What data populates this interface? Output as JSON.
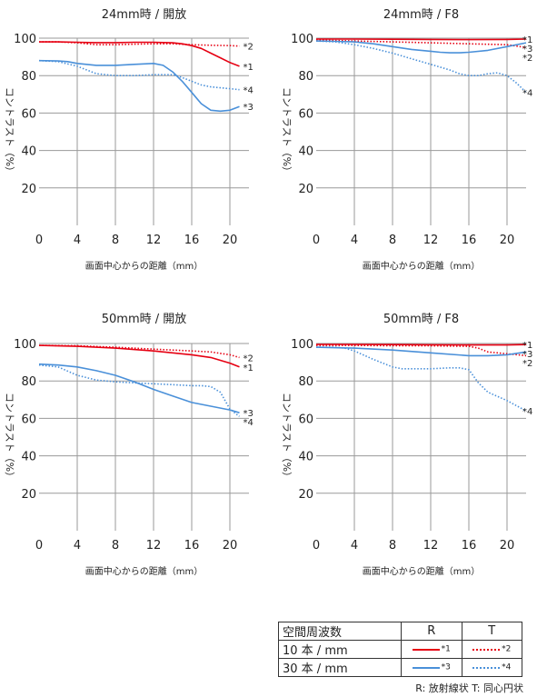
{
  "chart_data": [
    {
      "type": "line",
      "title": "24mm時 / 開放",
      "xlabel": "画面中心からの距離（mm）",
      "ylabel": "コントラスト（%）",
      "xlim": [
        0,
        22
      ],
      "ylim": [
        0,
        100
      ],
      "xticks": [
        "0",
        "4",
        "8",
        "12",
        "16",
        "20"
      ],
      "yticks": [
        "20",
        "40",
        "60",
        "80",
        "100"
      ],
      "series": [
        {
          "name": "*1",
          "style": "solid",
          "color": "#e60012",
          "x": [
            0,
            2,
            4,
            6,
            8,
            10,
            12,
            14,
            15,
            16,
            17,
            18,
            19,
            20,
            21
          ],
          "y": [
            98,
            98,
            97.8,
            97.6,
            97.6,
            97.8,
            97.8,
            97.5,
            97,
            96,
            94.5,
            92,
            89.5,
            87,
            85
          ]
        },
        {
          "name": "*2",
          "style": "dotted",
          "color": "#e60012",
          "x": [
            0,
            2,
            4,
            6,
            8,
            10,
            12,
            14,
            16,
            18,
            20,
            21
          ],
          "y": [
            98,
            98,
            97.5,
            96.5,
            96.5,
            96.8,
            97,
            97,
            96.5,
            96.2,
            96,
            95.8
          ]
        },
        {
          "name": "*3",
          "style": "solid",
          "color": "#4a90d9",
          "x": [
            0,
            2,
            3,
            4,
            6,
            8,
            10,
            12,
            13,
            14,
            15,
            16,
            17,
            18,
            19,
            20,
            21
          ],
          "y": [
            88,
            87.8,
            87.5,
            86.5,
            85.5,
            85.5,
            86,
            86.5,
            85.5,
            82,
            77,
            71,
            65,
            61.5,
            61,
            61.5,
            63.5
          ]
        },
        {
          "name": "*4",
          "style": "dotted",
          "color": "#4a90d9",
          "x": [
            0,
            2,
            4,
            6,
            8,
            10,
            12,
            14,
            15,
            16,
            17,
            18,
            19,
            20,
            21
          ],
          "y": [
            88,
            87.5,
            85,
            81,
            80,
            80,
            80.5,
            80.5,
            79,
            77,
            75,
            74,
            73.5,
            73,
            72.5
          ]
        }
      ]
    },
    {
      "type": "line",
      "title": "24mm時 / F8",
      "xlabel": "画面中心からの距離（mm）",
      "ylabel": "コントラスト（%）",
      "xlim": [
        0,
        22
      ],
      "ylim": [
        0,
        100
      ],
      "xticks": [
        "0",
        "4",
        "8",
        "12",
        "16",
        "20"
      ],
      "yticks": [
        "20",
        "40",
        "60",
        "80",
        "100"
      ],
      "series": [
        {
          "name": "*1",
          "style": "solid",
          "color": "#e60012",
          "x": [
            0,
            4,
            8,
            12,
            16,
            20,
            22
          ],
          "y": [
            99.5,
            99.5,
            99.4,
            99.3,
            99.2,
            99.3,
            99.5
          ]
        },
        {
          "name": "*2",
          "style": "dotted",
          "color": "#e60012",
          "x": [
            0,
            4,
            8,
            12,
            16,
            20,
            22
          ],
          "y": [
            99,
            98.5,
            98,
            97.5,
            97,
            96.5,
            95
          ]
        },
        {
          "name": "*3",
          "style": "solid",
          "color": "#4a90d9",
          "x": [
            0,
            2,
            4,
            6,
            8,
            10,
            12,
            13,
            14,
            15,
            16,
            18,
            20,
            22
          ],
          "y": [
            98.5,
            98.3,
            98,
            97,
            95.5,
            94,
            93,
            92.5,
            92.2,
            92.2,
            92.5,
            93.5,
            95.5,
            97.5
          ]
        },
        {
          "name": "*4",
          "style": "dotted",
          "color": "#4a90d9",
          "x": [
            0,
            2,
            4,
            6,
            8,
            10,
            12,
            14,
            15,
            16,
            17,
            18,
            19,
            20,
            21,
            22
          ],
          "y": [
            98.5,
            98,
            96.5,
            94.5,
            92,
            89,
            86,
            83,
            81,
            80,
            80,
            81,
            81.5,
            80,
            76,
            71
          ]
        }
      ]
    },
    {
      "type": "line",
      "title": "50mm時 / 開放",
      "xlabel": "画面中心からの距離（mm）",
      "ylabel": "コントラスト（%）",
      "xlim": [
        0,
        22
      ],
      "ylim": [
        0,
        100
      ],
      "xticks": [
        "0",
        "4",
        "8",
        "12",
        "16",
        "20"
      ],
      "yticks": [
        "20",
        "40",
        "60",
        "80",
        "100"
      ],
      "series": [
        {
          "name": "*1",
          "style": "solid",
          "color": "#e60012",
          "x": [
            0,
            4,
            8,
            12,
            16,
            18,
            20,
            21
          ],
          "y": [
            99,
            98.5,
            97.5,
            96,
            94,
            92.5,
            89.5,
            87.5
          ]
        },
        {
          "name": "*2",
          "style": "dotted",
          "color": "#e60012",
          "x": [
            0,
            4,
            8,
            12,
            16,
            18,
            20,
            21
          ],
          "y": [
            99,
            98.8,
            98,
            97,
            96,
            95.5,
            94,
            92.5
          ]
        },
        {
          "name": "*3",
          "style": "solid",
          "color": "#4a90d9",
          "x": [
            0,
            2,
            4,
            6,
            8,
            10,
            12,
            14,
            16,
            18,
            20,
            21
          ],
          "y": [
            89,
            88.5,
            87.5,
            85.5,
            83,
            79.5,
            75.5,
            72,
            68.5,
            66.5,
            64.5,
            63
          ]
        },
        {
          "name": "*4",
          "style": "dotted",
          "color": "#4a90d9",
          "x": [
            0,
            2,
            4,
            6,
            8,
            10,
            12,
            14,
            16,
            17,
            18,
            19,
            20,
            21
          ],
          "y": [
            88.5,
            87.5,
            83,
            80.5,
            79.5,
            79,
            78.5,
            78,
            77.5,
            77.5,
            77,
            74,
            65,
            61
          ]
        }
      ]
    },
    {
      "type": "line",
      "title": "50mm時 / F8",
      "xlabel": "画面中心からの距離（mm）",
      "ylabel": "コントラスト（%）",
      "xlim": [
        0,
        22
      ],
      "ylim": [
        0,
        100
      ],
      "xticks": [
        "0",
        "4",
        "8",
        "12",
        "16",
        "20"
      ],
      "yticks": [
        "20",
        "40",
        "60",
        "80",
        "100"
      ],
      "series": [
        {
          "name": "*1",
          "style": "solid",
          "color": "#e60012",
          "x": [
            0,
            4,
            8,
            12,
            16,
            20,
            22
          ],
          "y": [
            99.5,
            99.5,
            99.4,
            99.3,
            99.2,
            99.2,
            99.4
          ]
        },
        {
          "name": "*2",
          "style": "dotted",
          "color": "#e60012",
          "x": [
            0,
            4,
            8,
            12,
            16,
            17,
            18,
            20,
            22
          ],
          "y": [
            99,
            99,
            98.8,
            98.8,
            98.5,
            97.5,
            95.5,
            94.5,
            93.5
          ]
        },
        {
          "name": "*3",
          "style": "solid",
          "color": "#4a90d9",
          "x": [
            0,
            4,
            8,
            12,
            16,
            18,
            20,
            22
          ],
          "y": [
            98,
            97.5,
            96.5,
            95,
            93.5,
            93.5,
            94,
            95.5
          ]
        },
        {
          "name": "*4",
          "style": "dotted",
          "color": "#4a90d9",
          "x": [
            0,
            2,
            3,
            4,
            6,
            8,
            9,
            10,
            12,
            14,
            15,
            16,
            17,
            18,
            20,
            22
          ],
          "y": [
            98,
            98,
            97.5,
            96,
            91.5,
            87.5,
            86.5,
            86.5,
            86.5,
            87,
            87,
            86,
            79,
            74,
            69.5,
            64
          ]
        }
      ]
    }
  ],
  "legend_table": {
    "header": [
      "空間周波数",
      "R",
      "T"
    ],
    "rows": [
      {
        "label": "10 本 / mm",
        "r_mark": "*1",
        "t_mark": "*2"
      },
      {
        "label": "30 本 / mm",
        "r_mark": "*3",
        "t_mark": "*4"
      }
    ]
  },
  "footnote": "R: 放射線状  T: 同心円状"
}
